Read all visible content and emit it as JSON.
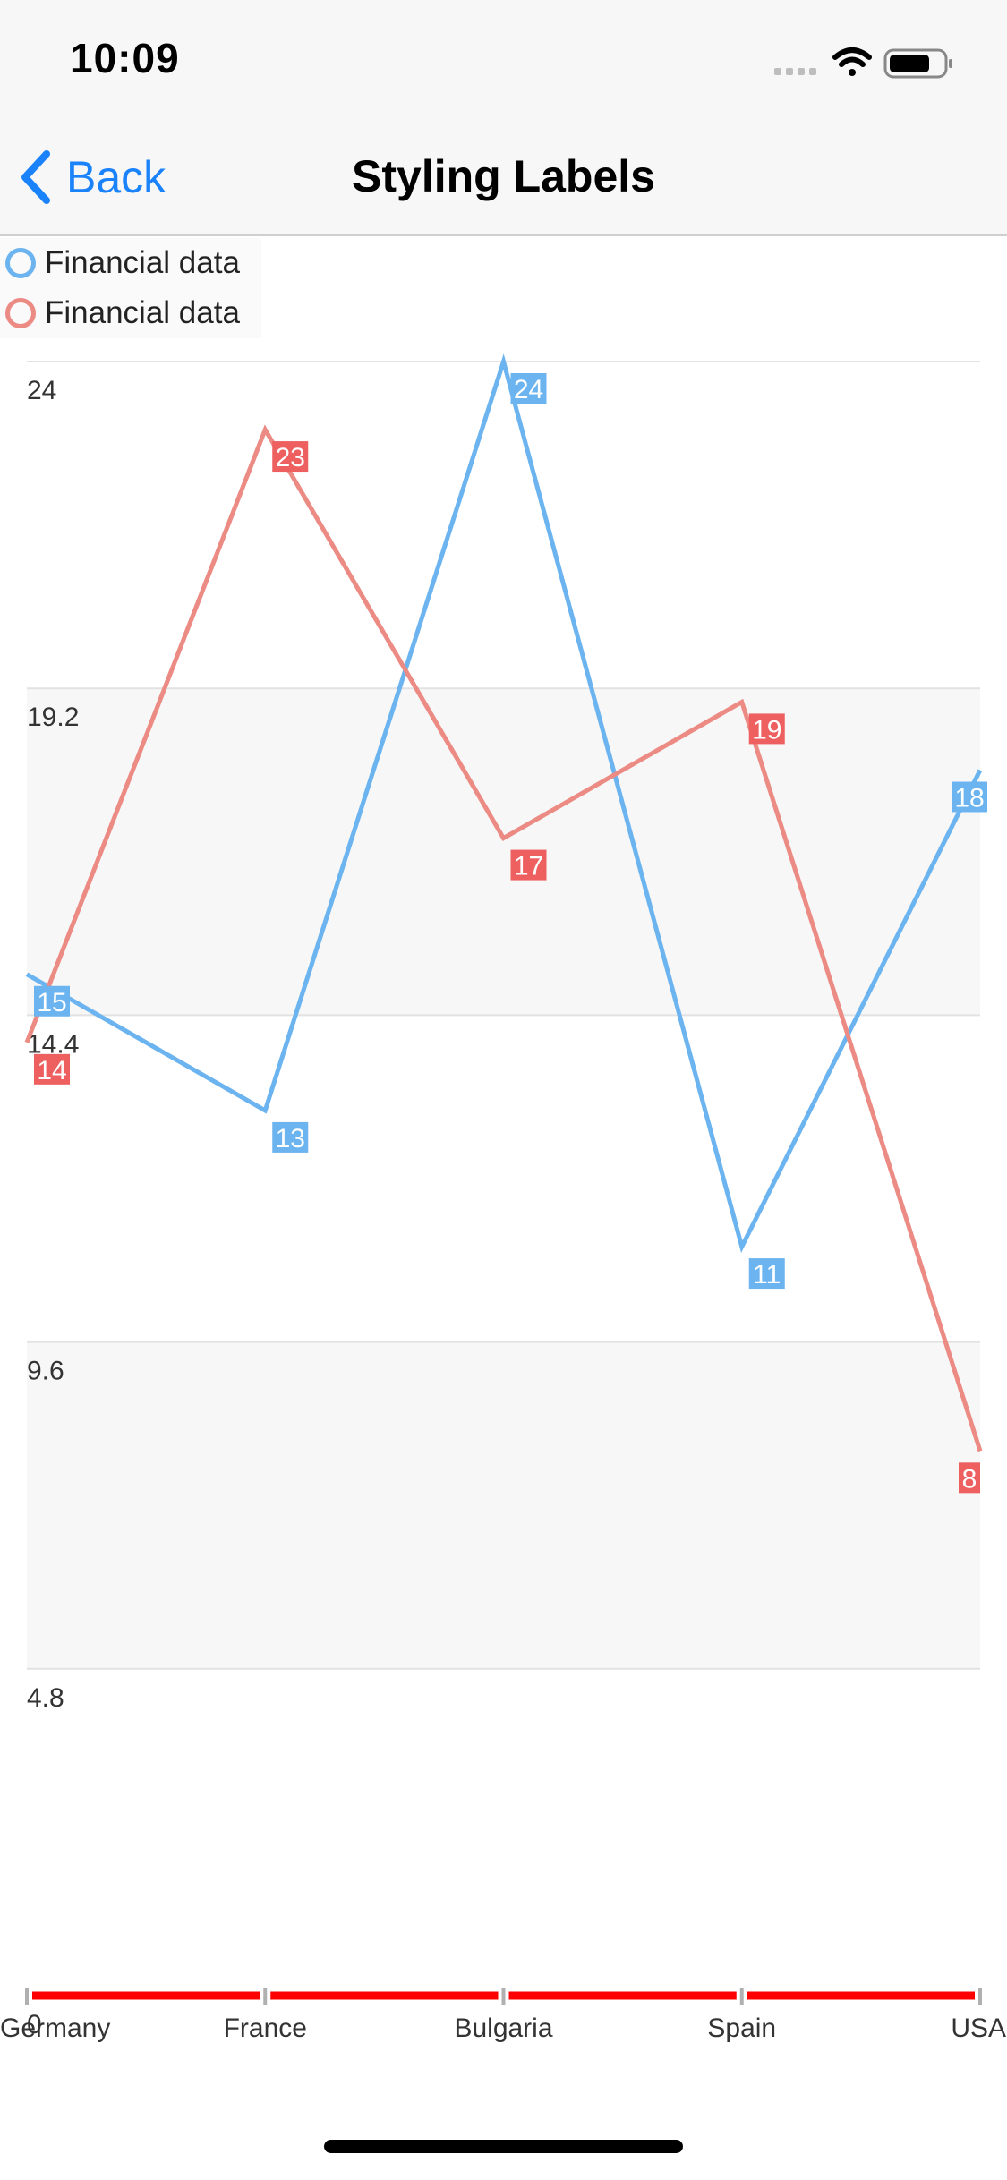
{
  "status_bar": {
    "time": "10:09"
  },
  "nav": {
    "back_label": "Back",
    "title": "Styling Labels"
  },
  "colors": {
    "accent": "#1a82fb",
    "series_blue": "#6cb4ef",
    "series_red": "#ec8a84",
    "label_red": "#ee5f5f",
    "label_blue": "#6cb4ef",
    "axis_red": "#ff0000"
  },
  "chart_data": {
    "type": "line",
    "categories": [
      "Germany",
      "France",
      "Bulgaria",
      "Spain",
      "USA"
    ],
    "series": [
      {
        "name": "Financial data",
        "values": [
          15,
          13,
          24,
          11,
          18
        ],
        "color": "#6cb4ef"
      },
      {
        "name": "Financial data",
        "values": [
          14,
          23,
          17,
          19,
          8
        ],
        "color": "#ec8a84"
      }
    ],
    "yticks": [
      "0",
      "4.8",
      "9.6",
      "14.4",
      "19.2",
      "24"
    ],
    "ylim": [
      0,
      24
    ],
    "grid": true,
    "alternating_bands": true,
    "legend_position": "top-left",
    "data_labels": true,
    "title": "",
    "xlabel": "",
    "ylabel": ""
  }
}
